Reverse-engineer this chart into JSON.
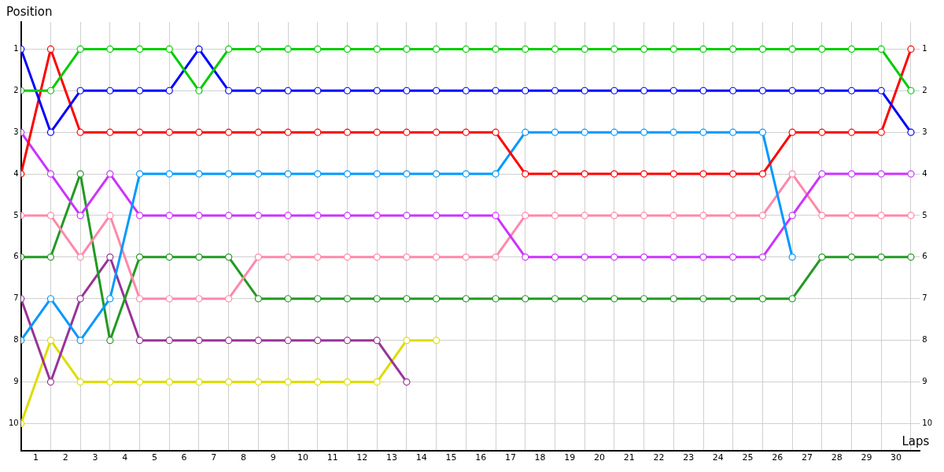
{
  "chart_data": {
    "type": "line",
    "xlabel": "Laps",
    "ylabel": "Position",
    "x": [
      0,
      1,
      2,
      3,
      4,
      5,
      6,
      7,
      8,
      9,
      10,
      11,
      12,
      13,
      14,
      15,
      16,
      17,
      18,
      19,
      20,
      21,
      22,
      23,
      24,
      25,
      26,
      27,
      28,
      29,
      30
    ],
    "xlim": [
      0,
      30.3
    ],
    "xticks": [
      {
        "value": 0.5,
        "label": "1"
      },
      {
        "value": 1,
        "label": null
      },
      {
        "value": 1.5,
        "label": "2"
      },
      {
        "value": 2,
        "label": null
      },
      {
        "value": 2.5,
        "label": "3"
      },
      {
        "value": 3,
        "label": null
      },
      {
        "value": 3.5,
        "label": "4"
      },
      {
        "value": 4,
        "label": null
      },
      {
        "value": 4.5,
        "label": "5"
      },
      {
        "value": 5,
        "label": null
      },
      {
        "value": 5.5,
        "label": "6"
      },
      {
        "value": 6,
        "label": null
      },
      {
        "value": 6.5,
        "label": "7"
      },
      {
        "value": 7,
        "label": null
      },
      {
        "value": 7.5,
        "label": "8"
      },
      {
        "value": 8,
        "label": null
      },
      {
        "value": 8.5,
        "label": "9"
      },
      {
        "value": 9,
        "label": null
      },
      {
        "value": 9.5,
        "label": "10"
      },
      {
        "value": 10,
        "label": null
      },
      {
        "value": 10.5,
        "label": "11"
      },
      {
        "value": 11,
        "label": null
      },
      {
        "value": 11.5,
        "label": "12"
      },
      {
        "value": 12,
        "label": null
      },
      {
        "value": 12.5,
        "label": "13"
      },
      {
        "value": 13,
        "label": null
      },
      {
        "value": 13.5,
        "label": "14"
      },
      {
        "value": 14,
        "label": null
      },
      {
        "value": 14.5,
        "label": "15"
      },
      {
        "value": 15,
        "label": null
      },
      {
        "value": 15.5,
        "label": "16"
      },
      {
        "value": 16,
        "label": null
      },
      {
        "value": 16.5,
        "label": "17"
      },
      {
        "value": 17,
        "label": null
      },
      {
        "value": 17.5,
        "label": "18"
      },
      {
        "value": 18,
        "label": null
      },
      {
        "value": 18.5,
        "label": "19"
      },
      {
        "value": 19,
        "label": null
      },
      {
        "value": 19.5,
        "label": "20"
      },
      {
        "value": 20,
        "label": null
      },
      {
        "value": 20.5,
        "label": "21"
      },
      {
        "value": 21,
        "label": null
      },
      {
        "value": 21.5,
        "label": "22"
      },
      {
        "value": 22,
        "label": null
      },
      {
        "value": 22.5,
        "label": "23"
      },
      {
        "value": 23,
        "label": null
      },
      {
        "value": 23.5,
        "label": "24"
      },
      {
        "value": 24,
        "label": null
      },
      {
        "value": 24.5,
        "label": "25"
      },
      {
        "value": 25,
        "label": null
      },
      {
        "value": 25.5,
        "label": "26"
      },
      {
        "value": 26,
        "label": null
      },
      {
        "value": 26.5,
        "label": "27"
      },
      {
        "value": 27,
        "label": null
      },
      {
        "value": 27.5,
        "label": "28"
      },
      {
        "value": 28,
        "label": null
      },
      {
        "value": 28.5,
        "label": "29"
      },
      {
        "value": 29,
        "label": null
      },
      {
        "value": 29.5,
        "label": "30"
      },
      {
        "value": 30,
        "label": null
      }
    ],
    "ylim": [
      10.65,
      0.35
    ],
    "yticks": [
      1,
      2,
      3,
      4,
      5,
      6,
      7,
      8,
      9,
      10
    ],
    "y2lim": [
      10.65,
      0.35
    ],
    "y2ticks": [
      1,
      2,
      3,
      4,
      5,
      6,
      7,
      8,
      9,
      10
    ],
    "grid": true,
    "legend": false,
    "marker": "circle",
    "line_style": "solid",
    "series": [
      {
        "color": "#00cc00",
        "values": [
          2,
          2,
          1,
          1,
          1,
          1,
          2,
          1,
          1,
          1,
          1,
          1,
          1,
          1,
          1,
          1,
          1,
          1,
          1,
          1,
          1,
          1,
          1,
          1,
          1,
          1,
          1,
          1,
          1,
          1,
          2
        ]
      },
      {
        "color": "#0000ff",
        "values": [
          1,
          3,
          2,
          2,
          2,
          2,
          1,
          2,
          2,
          2,
          2,
          2,
          2,
          2,
          2,
          2,
          2,
          2,
          2,
          2,
          2,
          2,
          2,
          2,
          2,
          2,
          2,
          2,
          2,
          2,
          3
        ]
      },
      {
        "color": "#ff0000",
        "values": [
          4,
          1,
          3,
          3,
          3,
          3,
          3,
          3,
          3,
          3,
          3,
          3,
          3,
          3,
          3,
          3,
          3,
          4,
          4,
          4,
          4,
          4,
          4,
          4,
          4,
          4,
          3,
          3,
          3,
          3,
          1
        ]
      },
      {
        "color": "#0099ff",
        "values": [
          8,
          7,
          8,
          7,
          4,
          4,
          4,
          4,
          4,
          4,
          4,
          4,
          4,
          4,
          4,
          4,
          4,
          3,
          3,
          3,
          3,
          3,
          3,
          3,
          3,
          3,
          6,
          null,
          null,
          null,
          null
        ]
      },
      {
        "color": "#cc33ff",
        "values": [
          3,
          4,
          5,
          4,
          5,
          5,
          5,
          5,
          5,
          5,
          5,
          5,
          5,
          5,
          5,
          5,
          5,
          6,
          6,
          6,
          6,
          6,
          6,
          6,
          6,
          6,
          5,
          4,
          4,
          4,
          4
        ]
      },
      {
        "color": "#ff88aa",
        "values": [
          5,
          5,
          6,
          5,
          7,
          7,
          7,
          7,
          6,
          6,
          6,
          6,
          6,
          6,
          6,
          6,
          6,
          5,
          5,
          5,
          5,
          5,
          5,
          5,
          5,
          5,
          4,
          5,
          5,
          5,
          5
        ]
      },
      {
        "color": "#229922",
        "values": [
          6,
          6,
          4,
          8,
          6,
          6,
          6,
          6,
          7,
          7,
          7,
          7,
          7,
          7,
          7,
          7,
          7,
          7,
          7,
          7,
          7,
          7,
          7,
          7,
          7,
          7,
          7,
          6,
          6,
          6,
          6
        ]
      },
      {
        "color": "#993399",
        "values": [
          7,
          9,
          7,
          6,
          8,
          8,
          8,
          8,
          8,
          8,
          8,
          8,
          8,
          9,
          null,
          null,
          null,
          null,
          null,
          null,
          null,
          null,
          null,
          null,
          null,
          null,
          null,
          null,
          null,
          null,
          null
        ]
      },
      {
        "color": "#dddd00",
        "values": [
          10,
          8,
          9,
          9,
          9,
          9,
          9,
          9,
          9,
          9,
          9,
          9,
          9,
          8,
          8,
          null,
          null,
          null,
          null,
          null,
          null,
          null,
          null,
          null,
          null,
          null,
          null,
          null,
          null,
          null,
          null
        ]
      }
    ]
  }
}
